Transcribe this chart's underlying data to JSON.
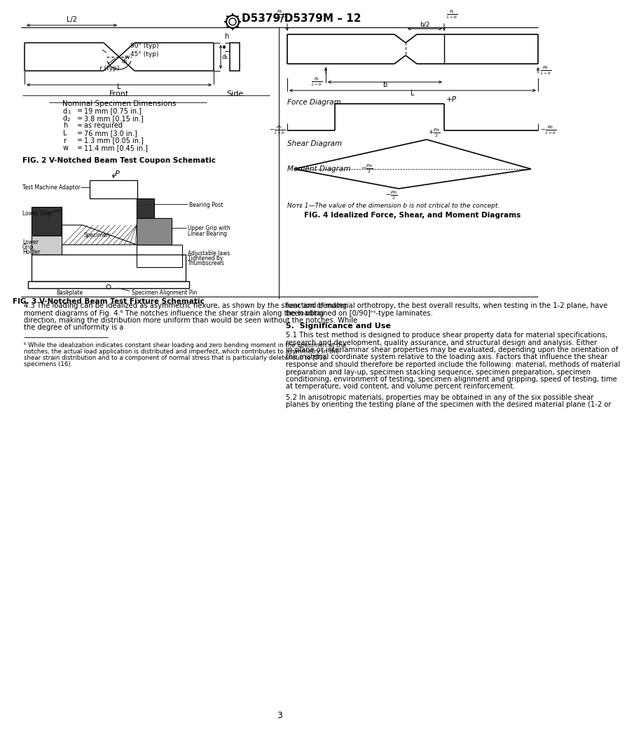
{
  "title": "D5379/D5379M – 12",
  "page_num": "3",
  "background": "#ffffff",
  "fig2_caption": "FIG. 2 V-Notched Beam Test Coupon Schematic",
  "fig3_caption": "FIG. 3 V-Notched Beam Test Fixture Schematic",
  "fig4_caption": "FIG. 4 Idealized Force, Shear, and Moment Diagrams",
  "nominal_dims_title": "Nominal Specimen Dimensions",
  "dims": [
    [
      "d",
      "1",
      "=",
      "19 mm [0.75 in.]"
    ],
    [
      "d",
      "2",
      "=",
      "3.8 mm [0.15 in.]"
    ],
    [
      "h",
      "",
      "=",
      "as required"
    ],
    [
      "L",
      "",
      "=",
      "76 mm [3.0 in.]"
    ],
    [
      "r",
      "",
      "=",
      "1.3 mm [0.05 in.]"
    ],
    [
      "w",
      "",
      "=",
      "11.4 mm [0.45 in.]"
    ]
  ],
  "note1": "Nᴏᴛᴇ 1—The value of the dimension b is not critical to the concept.",
  "para43": "4.3 The loading can be idealized as asymmetric flexure, as shown by the shear and bending moment diagrams of Fig. 4.⁶ The notches influence the shear strain along the loading direction, making the distribution more uniform than would be seen without the notches. While the degree of uniformity is a",
  "para_cont": "function of material orthotropy, the best overall results, when testing in the 1-2 plane, have been obtained on [0/90]ⁿˢ-type laminates.",
  "section5_title": "5.  Significance and Use",
  "para51": "5.1  This test method is designed to produce shear property data for material specifications, research and development, quality assurance, and structural design and analysis. Either in-plane or interlaminar shear properties may be evaluated, depending upon the orientation of the material coordinate system relative to the loading axis. Factors that influence the shear response and should therefore be reported include the following: material, methods of material preparation and lay-up, specimen stacking sequence, specimen preparation, specimen conditioning, environment of testing, specimen alignment and gripping, speed of testing, time at temperature, void content, and volume percent reinforcement.",
  "para52": "5.2  In anisotropic materials, properties may be obtained in any of the six possible shear planes by orienting the testing plane of the specimen with the desired material plane (1-2 or",
  "footnote": "⁶ While the idealization indicates constant shear loading and zero bending moment in the specimen at the notches, the actual load application is distributed and imperfect, which contributes to asymmetry in the shear strain distribution and to a component of normal stress that is particularly deleterious to [90]ₙ specimens (16)."
}
